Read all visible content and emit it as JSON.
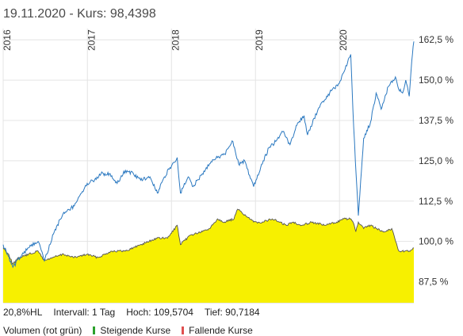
{
  "header": {
    "date": "19.11.2020",
    "kurs_text": " - Kurs: 98,4398"
  },
  "stats": {
    "hl": "20,8%HL",
    "intervall": "Intervall: 1 Tag",
    "hoch": "Hoch: 109,5704",
    "tief": "Tief: 90,7184"
  },
  "legend": {
    "volumen": "Volumen (rot grün)",
    "steigende": "Steigende Kurse",
    "fallende": "Fallende Kurse",
    "steigende_color": "#2ca02c",
    "fallende_color": "#e05050"
  },
  "chart_data": {
    "type": "line",
    "x_range": [
      "2016-01-01",
      "2020-11-19"
    ],
    "ylim": [
      81,
      166
    ],
    "y_ticks": [
      87.5,
      100,
      112.5,
      125,
      137.5,
      150,
      162.5
    ],
    "y_tick_labels": [
      "87,5 %",
      "100,0 %",
      "112,5 %",
      "125,0 %",
      "137,5 %",
      "150,0 %",
      "162,5 %"
    ],
    "year_labels": [
      {
        "label": "2016",
        "date": "2016-01-01"
      },
      {
        "label": "2017",
        "date": "2017-01-01"
      },
      {
        "label": "2018",
        "date": "2018-01-01"
      },
      {
        "label": "2019",
        "date": "2019-01-01"
      },
      {
        "label": "2020",
        "date": "2020-01-01"
      }
    ],
    "grid": true,
    "colors": {
      "benchmark": "#2a78c0",
      "fund_line": "#555555",
      "fund_fill": "#f7f000"
    },
    "series": [
      {
        "role": "benchmark",
        "x": [
          "2016-01-01",
          "2016-01-20",
          "2016-02-12",
          "2016-03-15",
          "2016-04-20",
          "2016-06-01",
          "2016-06-28",
          "2016-08-10",
          "2016-09-20",
          "2016-11-05",
          "2016-12-31",
          "2017-02-01",
          "2017-03-01",
          "2017-04-10",
          "2017-05-10",
          "2017-06-15",
          "2017-07-20",
          "2017-08-20",
          "2017-09-30",
          "2017-11-01",
          "2017-12-01",
          "2018-01-05",
          "2018-01-26",
          "2018-02-09",
          "2018-03-15",
          "2018-04-05",
          "2018-05-15",
          "2018-06-15",
          "2018-07-20",
          "2018-08-20",
          "2018-09-25",
          "2018-10-20",
          "2018-11-15",
          "2018-12-24",
          "2019-01-31",
          "2019-02-28",
          "2019-03-30",
          "2019-04-30",
          "2019-05-31",
          "2019-06-30",
          "2019-07-31",
          "2019-08-15",
          "2019-09-30",
          "2019-10-31",
          "2019-11-30",
          "2019-12-31",
          "2020-01-15",
          "2020-02-19",
          "2020-02-28",
          "2020-03-10",
          "2020-03-23",
          "2020-04-15",
          "2020-05-15",
          "2020-06-08",
          "2020-06-30",
          "2020-07-31",
          "2020-08-31",
          "2020-09-15",
          "2020-10-01",
          "2020-10-15",
          "2020-10-30",
          "2020-11-10",
          "2020-11-19"
        ],
        "values": [
          99,
          96,
          92,
          95,
          98,
          100,
          94,
          103,
          109,
          111,
          118,
          119,
          121,
          121,
          118,
          122,
          121,
          119,
          120,
          115,
          120,
          124,
          126,
          115,
          120,
          117,
          121,
          124,
          126,
          127,
          131,
          124,
          125,
          117,
          124,
          129,
          131,
          134,
          130,
          136,
          139,
          133,
          141,
          144,
          147,
          149,
          152,
          158,
          141,
          125,
          108,
          132,
          137,
          146,
          141,
          148,
          151,
          147,
          146,
          150,
          145,
          156,
          162
        ]
      },
      {
        "role": "fund",
        "x": [
          "2016-01-01",
          "2016-01-25",
          "2016-02-12",
          "2016-03-10",
          "2016-04-20",
          "2016-06-01",
          "2016-06-28",
          "2016-08-01",
          "2016-09-20",
          "2016-11-04",
          "2016-12-31",
          "2017-02-15",
          "2017-04-15",
          "2017-06-15",
          "2017-08-20",
          "2017-10-30",
          "2017-12-15",
          "2018-01-26",
          "2018-02-09",
          "2018-03-25",
          "2018-05-15",
          "2018-06-15",
          "2018-07-20",
          "2018-08-20",
          "2018-09-30",
          "2018-10-15",
          "2018-11-20",
          "2018-12-24",
          "2019-01-31",
          "2019-03-15",
          "2019-05-15",
          "2019-06-15",
          "2019-07-20",
          "2019-09-01",
          "2019-10-30",
          "2019-12-20",
          "2020-01-20",
          "2020-02-20",
          "2020-03-05",
          "2020-03-12",
          "2020-03-23",
          "2020-04-15",
          "2020-05-15",
          "2020-06-08",
          "2020-07-15",
          "2020-08-15",
          "2020-09-15",
          "2020-10-10",
          "2020-10-30",
          "2020-11-19"
        ],
        "values": [
          98,
          96,
          93,
          95,
          96,
          97,
          94,
          95,
          96,
          95,
          96,
          95,
          97,
          97,
          99,
          101,
          101,
          105,
          99,
          102,
          103,
          104,
          107,
          106,
          107,
          110,
          108,
          106,
          106,
          107,
          105,
          106,
          105,
          106,
          105,
          106,
          107,
          107,
          105,
          103,
          106,
          104,
          105,
          104,
          103,
          104,
          97,
          97,
          97,
          98
        ]
      }
    ]
  }
}
